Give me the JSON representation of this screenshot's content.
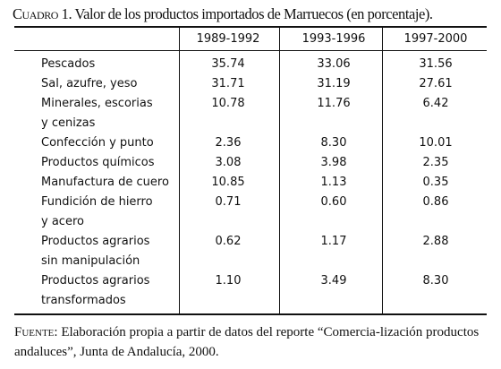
{
  "caption": {
    "label": "Cuadro 1.",
    "text": " Valor de los productos importados de Marruecos (en porcentaje)."
  },
  "table": {
    "columns": [
      "1989-1992",
      "1993-1996",
      "1997-2000"
    ],
    "rows": [
      {
        "label_lines": [
          "Pescados"
        ],
        "values": [
          "35.74",
          "33.06",
          "31.56"
        ]
      },
      {
        "label_lines": [
          "Sal, azufre, yeso"
        ],
        "values": [
          "31.71",
          "31.19",
          "27.61"
        ]
      },
      {
        "label_lines": [
          "Minerales, escorias",
          "  y cenizas"
        ],
        "values": [
          "10.78",
          "11.76",
          "6.42"
        ]
      },
      {
        "label_lines": [
          "Confección y punto"
        ],
        "values": [
          "2.36",
          "8.30",
          "10.01"
        ]
      },
      {
        "label_lines": [
          "Productos químicos"
        ],
        "values": [
          "3.08",
          "3.98",
          "2.35"
        ]
      },
      {
        "label_lines": [
          "Manufactura de cuero"
        ],
        "values": [
          "10.85",
          "1.13",
          "0.35"
        ]
      },
      {
        "label_lines": [
          "Fundición de hierro",
          "  y acero"
        ],
        "values": [
          "0.71",
          "0.60",
          "0.86"
        ]
      },
      {
        "label_lines": [
          "Productos agrarios",
          "sin manipulación"
        ],
        "values": [
          "0.62",
          "1.17",
          "2.88"
        ]
      },
      {
        "label_lines": [
          "Productos agrarios",
          "transformados"
        ],
        "values": [
          "1.10",
          "3.49",
          "8.30"
        ]
      }
    ]
  },
  "source": {
    "label": "Fuente:",
    "text": " Elaboración propia a partir de datos del reporte “Comercia-lización productos andaluces”, Junta de Andalucía, 2000."
  }
}
